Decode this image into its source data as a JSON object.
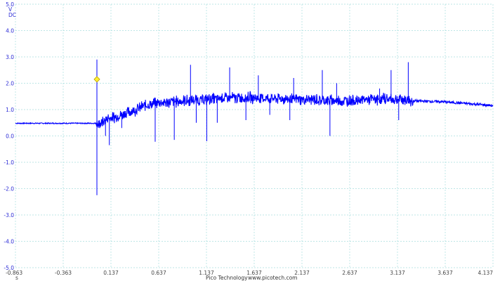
{
  "chart_data": {
    "type": "line",
    "y_unit_lines": [
      "V",
      "DC"
    ],
    "x_unit": "s",
    "ylim": [
      -5.0,
      5.0
    ],
    "xlim": [
      -0.863,
      4.137
    ],
    "y_ticks": [
      "5.0",
      "4.0",
      "3.0",
      "2.0",
      "1.0",
      "0.0",
      "-1.0",
      "-2.0",
      "-3.0",
      "-4.0",
      "-5.0"
    ],
    "x_ticks": [
      "-0.863",
      "-0.363",
      "0.137",
      "0.637",
      "1.137",
      "1.637",
      "2.137",
      "2.637",
      "3.137",
      "3.637",
      "4.137"
    ],
    "grid": true,
    "trace_color": "#0000ff",
    "trigger_marker": {
      "x": -0.01,
      "y": 2.15,
      "color": "#ffee33"
    },
    "series": [
      {
        "envelope": [
          [
            -0.863,
            0.48
          ],
          [
            -0.2,
            0.48
          ],
          [
            -0.02,
            0.48
          ],
          [
            0.0,
            0.4
          ],
          [
            0.1,
            0.65
          ],
          [
            0.2,
            0.75
          ],
          [
            0.3,
            0.88
          ],
          [
            0.4,
            1.0
          ],
          [
            0.5,
            1.15
          ],
          [
            0.6,
            1.25
          ],
          [
            0.8,
            1.3
          ],
          [
            1.0,
            1.35
          ],
          [
            1.2,
            1.4
          ],
          [
            1.4,
            1.45
          ],
          [
            1.6,
            1.45
          ],
          [
            1.8,
            1.42
          ],
          [
            2.0,
            1.4
          ],
          [
            2.2,
            1.38
          ],
          [
            2.4,
            1.35
          ],
          [
            2.6,
            1.33
          ],
          [
            2.8,
            1.38
          ],
          [
            3.0,
            1.4
          ],
          [
            3.2,
            1.38
          ],
          [
            3.3,
            1.33
          ],
          [
            3.6,
            1.3
          ],
          [
            3.9,
            1.22
          ],
          [
            4.137,
            1.15
          ]
        ],
        "spikes": [
          [
            -0.01,
            2.9
          ],
          [
            -0.01,
            -2.25
          ],
          [
            0.08,
            0.0
          ],
          [
            0.12,
            -0.35
          ],
          [
            0.25,
            0.3
          ],
          [
            0.6,
            -0.22
          ],
          [
            0.8,
            -0.15
          ],
          [
            0.97,
            2.7
          ],
          [
            1.03,
            0.5
          ],
          [
            1.14,
            -0.2
          ],
          [
            1.25,
            0.5
          ],
          [
            1.38,
            2.6
          ],
          [
            1.55,
            0.6
          ],
          [
            1.68,
            2.3
          ],
          [
            1.8,
            0.8
          ],
          [
            2.01,
            0.6
          ],
          [
            2.05,
            2.2
          ],
          [
            2.35,
            2.5
          ],
          [
            2.43,
            0.0
          ],
          [
            2.5,
            2.0
          ],
          [
            2.95,
            1.8
          ],
          [
            3.07,
            2.5
          ],
          [
            3.15,
            0.6
          ],
          [
            3.25,
            2.8
          ]
        ]
      }
    ]
  },
  "footer": {
    "brand": "Pico Technology",
    "url": "www.picotech.com"
  }
}
